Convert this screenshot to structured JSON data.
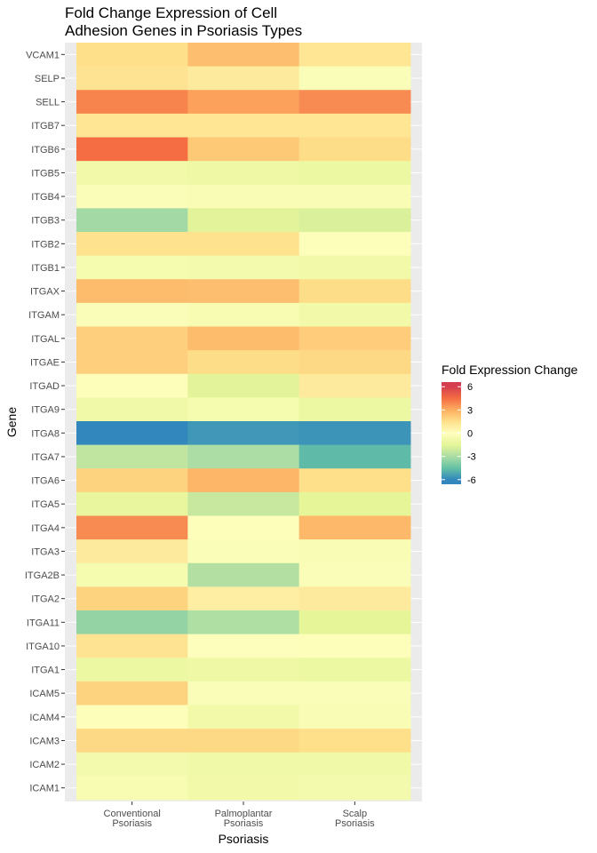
{
  "chart_data": {
    "type": "heatmap",
    "title_lines": [
      "Fold Change Expression of Cell",
      "Adhesion Genes in Psoriasis Types"
    ],
    "xlabel": "Psoriasis",
    "ylabel": "Gene",
    "x_categories": [
      [
        "Conventional",
        "Psoriasis"
      ],
      [
        "Palmoplantar",
        "Psoriasis"
      ],
      [
        "Scalp",
        "Psoriasis"
      ]
    ],
    "y_categories": [
      "VCAM1",
      "SELP",
      "SELL",
      "ITGB7",
      "ITGB6",
      "ITGB5",
      "ITGB4",
      "ITGB3",
      "ITGB2",
      "ITGB1",
      "ITGAX",
      "ITGAM",
      "ITGAL",
      "ITGAE",
      "ITGAD",
      "ITGA9",
      "ITGA8",
      "ITGA7",
      "ITGA6",
      "ITGA5",
      "ITGA4",
      "ITGA3",
      "ITGA2B",
      "ITGA2",
      "ITGA11",
      "ITGA10",
      "ITGA1",
      "ICAM5",
      "ICAM4",
      "ICAM3",
      "ICAM2",
      "ICAM1"
    ],
    "values": [
      [
        1.5,
        2.5,
        1.2
      ],
      [
        1.3,
        1.0,
        -0.3
      ],
      [
        4.0,
        3.3,
        3.8
      ],
      [
        1.2,
        1.2,
        1.2
      ],
      [
        4.5,
        2.2,
        1.6
      ],
      [
        -0.8,
        -1.0,
        -1.1
      ],
      [
        -0.3,
        -0.4,
        -0.4
      ],
      [
        -3.2,
        -1.6,
        -1.8
      ],
      [
        1.4,
        1.4,
        -0.2
      ],
      [
        -0.6,
        -0.7,
        -0.8
      ],
      [
        2.6,
        2.5,
        1.6
      ],
      [
        -0.3,
        -0.5,
        -0.8
      ],
      [
        2.0,
        2.6,
        2.1
      ],
      [
        2.0,
        1.6,
        1.7
      ],
      [
        -0.2,
        -1.6,
        1.0
      ],
      [
        -0.9,
        -0.6,
        -1.1
      ],
      [
        -6.0,
        -5.6,
        -5.7
      ],
      [
        -2.5,
        -3.0,
        -4.7
      ],
      [
        1.9,
        2.8,
        1.5
      ],
      [
        -1.3,
        -2.3,
        -1.5
      ],
      [
        3.8,
        -0.2,
        2.7
      ],
      [
        1.0,
        -0.3,
        -0.4
      ],
      [
        -0.6,
        -2.8,
        -0.3
      ],
      [
        1.9,
        0.8,
        1.0
      ],
      [
        -3.5,
        -2.9,
        -1.5
      ],
      [
        1.3,
        -0.1,
        -0.2
      ],
      [
        -1.1,
        -1.0,
        -1.1
      ],
      [
        1.9,
        -0.3,
        -0.3
      ],
      [
        -0.2,
        -0.8,
        -0.4
      ],
      [
        1.7,
        1.7,
        1.5
      ],
      [
        -0.7,
        -0.9,
        -0.9
      ],
      [
        -0.5,
        -0.8,
        -0.7
      ]
    ],
    "legend": {
      "title": "Fold Expression Change",
      "ticks": [
        6,
        3,
        0,
        -3,
        -6
      ],
      "tick_labels": [
        "6",
        "3",
        "0",
        "-3",
        "-6"
      ],
      "position": "right"
    },
    "zlim": [
      -6,
      6
    ],
    "colormap": "Spectral",
    "colors": [
      "#3288BD",
      "#66C2A5",
      "#ABDDA4",
      "#E6F598",
      "#FFFFBF",
      "#FEE08B",
      "#FDAE61",
      "#F46D43",
      "#D53E4F"
    ]
  }
}
